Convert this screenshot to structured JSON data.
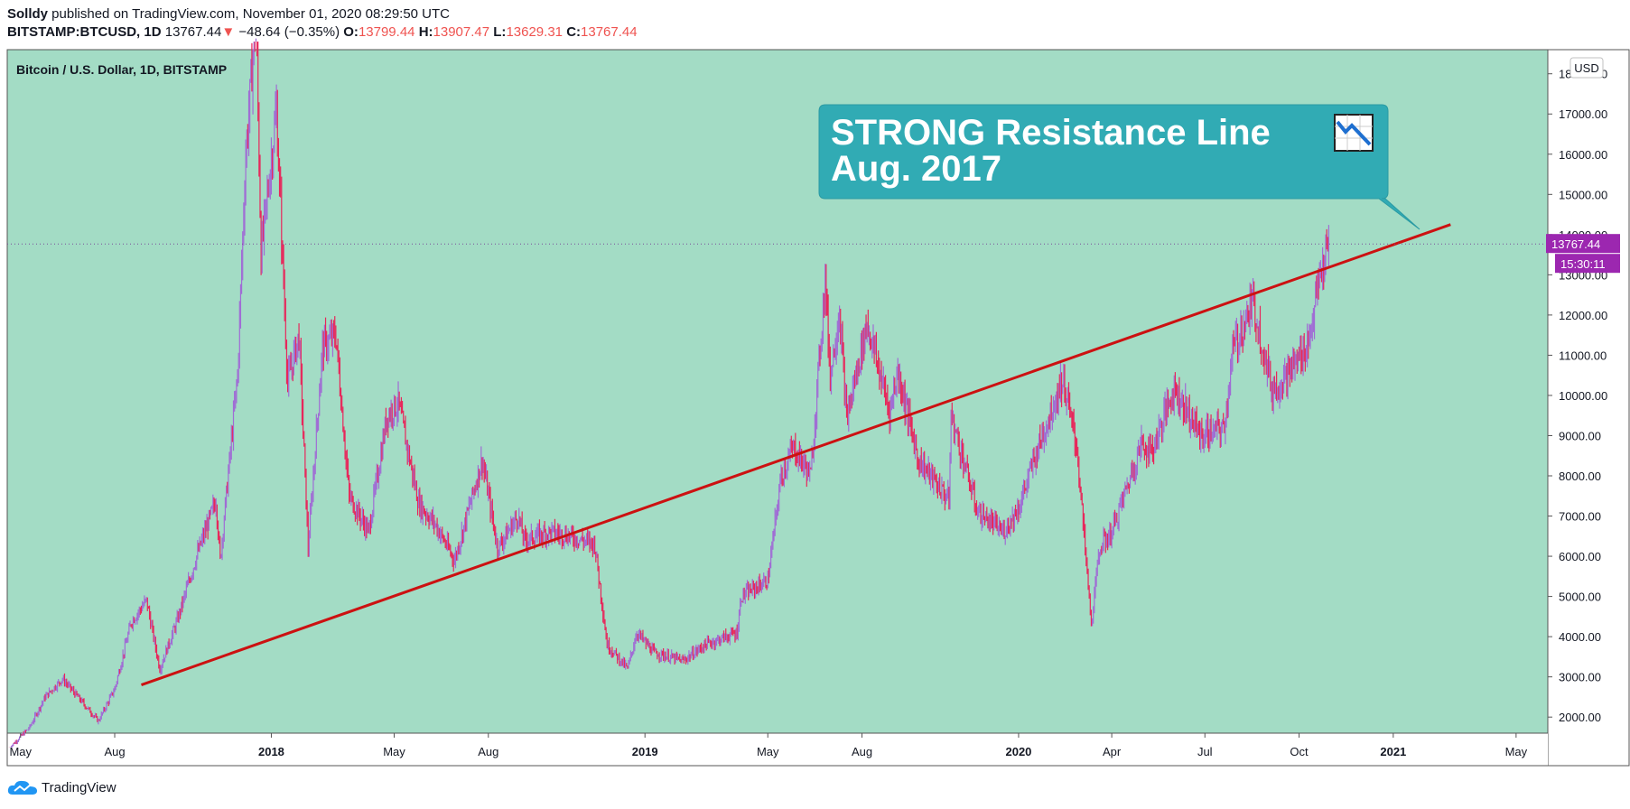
{
  "header": {
    "author": "Solldy",
    "published_text": " published on TradingView.com, November 01, 2020 08:29:50 UTC",
    "symbol": "BITSTAMP:BTCUSD, 1D",
    "last": "13767.44",
    "down_arrow": "▼",
    "change": "−48.64 (−0.35%)",
    "o_label": "O:",
    "o_value": "13799.44",
    "h_label": "H:",
    "h_value": "13907.47",
    "l_label": "L:",
    "l_value": "13629.31",
    "c_label": "C:",
    "c_value": "13767.44"
  },
  "chart_title": "Bitcoin / U.S. Dollar, 1D, BITSTAMP",
  "currency": "USD",
  "last_price_label": "13767.44",
  "countdown_label": "15:30:11",
  "annotation": {
    "line1": "STRONG Resistance Line",
    "line2": "Aug. 2017",
    "emoji_icon": "chart-decreasing-icon"
  },
  "footer": {
    "brand": "TradingView"
  },
  "colors": {
    "background": "#a3dcc5",
    "candle_down": "#e8265a",
    "candle_up": "#a06cd5",
    "trendline": "#cc1111",
    "callout": "#31abb4",
    "price_tag": "#9c27b0"
  },
  "chart_data": {
    "type": "candlestick",
    "title": "Bitcoin / U.S. Dollar, 1D, BITSTAMP",
    "ylabel": "USD",
    "ylim": [
      1600,
      18600
    ],
    "y_ticks": [
      2000,
      3000,
      4000,
      5000,
      6000,
      7000,
      8000,
      9000,
      10000,
      11000,
      12000,
      13000,
      14000,
      15000,
      16000,
      17000,
      18000
    ],
    "y_tick_labels": [
      "2000.00",
      "3000.00",
      "4000.00",
      "5000.00",
      "6000.00",
      "7000.00",
      "8000.00",
      "9000.00",
      "10000.00",
      "11000.00",
      "12000.00",
      "13000.00",
      "14000.00",
      "15000.00",
      "16000.00",
      "17000.00",
      "18000.00"
    ],
    "x_range": [
      "2017-04-18",
      "2021-06-01"
    ],
    "x_ticks": [
      {
        "date": "2017-05-01",
        "label": "May",
        "bold": false
      },
      {
        "date": "2017-08-01",
        "label": "Aug",
        "bold": false
      },
      {
        "date": "2018-01-01",
        "label": "2018",
        "bold": true
      },
      {
        "date": "2018-05-01",
        "label": "May",
        "bold": false
      },
      {
        "date": "2018-08-01",
        "label": "Aug",
        "bold": false
      },
      {
        "date": "2019-01-01",
        "label": "2019",
        "bold": true
      },
      {
        "date": "2019-05-01",
        "label": "May",
        "bold": false
      },
      {
        "date": "2019-08-01",
        "label": "Aug",
        "bold": false
      },
      {
        "date": "2020-01-01",
        "label": "2020",
        "bold": true
      },
      {
        "date": "2020-04-01",
        "label": "Apr",
        "bold": false
      },
      {
        "date": "2020-07-01",
        "label": "Jul",
        "bold": false
      },
      {
        "date": "2020-10-01",
        "label": "Oct",
        "bold": false
      },
      {
        "date": "2021-01-01",
        "label": "2021",
        "bold": true
      },
      {
        "date": "2021-05-01",
        "label": "May",
        "bold": false
      }
    ],
    "price_path": [
      [
        "2017-04-20",
        1230
      ],
      [
        "2017-05-10",
        1750
      ],
      [
        "2017-05-25",
        2500
      ],
      [
        "2017-06-11",
        2950
      ],
      [
        "2017-07-16",
        1900
      ],
      [
        "2017-08-01",
        2700
      ],
      [
        "2017-08-17",
        4350
      ],
      [
        "2017-09-01",
        4900
      ],
      [
        "2017-09-14",
        3200
      ],
      [
        "2017-10-01",
        4400
      ],
      [
        "2017-10-20",
        6000
      ],
      [
        "2017-11-08",
        7400
      ],
      [
        "2017-11-12",
        5900
      ],
      [
        "2017-11-29",
        10500
      ],
      [
        "2017-12-07",
        16000
      ],
      [
        "2017-12-17",
        19500
      ],
      [
        "2017-12-22",
        13500
      ],
      [
        "2018-01-06",
        17100
      ],
      [
        "2018-01-17",
        10300
      ],
      [
        "2018-01-28",
        11500
      ],
      [
        "2018-02-06",
        6200
      ],
      [
        "2018-02-20",
        11200
      ],
      [
        "2018-03-05",
        11500
      ],
      [
        "2018-03-18",
        7500
      ],
      [
        "2018-04-06",
        6600
      ],
      [
        "2018-04-24",
        9500
      ],
      [
        "2018-05-05",
        9800
      ],
      [
        "2018-05-25",
        7300
      ],
      [
        "2018-06-10",
        6800
      ],
      [
        "2018-06-29",
        5900
      ],
      [
        "2018-07-26",
        8400
      ],
      [
        "2018-08-10",
        6200
      ],
      [
        "2018-08-30",
        7000
      ],
      [
        "2018-09-05",
        6400
      ],
      [
        "2018-09-30",
        6600
      ],
      [
        "2018-10-20",
        6500
      ],
      [
        "2018-11-13",
        6300
      ],
      [
        "2018-11-25",
        3800
      ],
      [
        "2018-12-15",
        3200
      ],
      [
        "2018-12-24",
        4100
      ],
      [
        "2019-01-10",
        3600
      ],
      [
        "2019-02-07",
        3400
      ],
      [
        "2019-03-01",
        3800
      ],
      [
        "2019-04-01",
        4100
      ],
      [
        "2019-04-05",
        5000
      ],
      [
        "2019-05-01",
        5400
      ],
      [
        "2019-05-14",
        8000
      ],
      [
        "2019-05-26",
        8700
      ],
      [
        "2019-06-12",
        8000
      ],
      [
        "2019-06-26",
        12900
      ],
      [
        "2019-07-01",
        10500
      ],
      [
        "2019-07-10",
        12100
      ],
      [
        "2019-07-17",
        9400
      ],
      [
        "2019-08-06",
        11800
      ],
      [
        "2019-08-28",
        9600
      ],
      [
        "2019-09-05",
        10600
      ],
      [
        "2019-09-25",
        8400
      ],
      [
        "2019-10-25",
        7400
      ],
      [
        "2019-10-27",
        9500
      ],
      [
        "2019-11-22",
        7100
      ],
      [
        "2019-12-17",
        6600
      ],
      [
        "2020-01-01",
        7200
      ],
      [
        "2020-01-20",
        8700
      ],
      [
        "2020-02-13",
        10400
      ],
      [
        "2020-02-27",
        8700
      ],
      [
        "2020-03-12",
        4300
      ],
      [
        "2020-03-20",
        6200
      ],
      [
        "2020-04-01",
        6600
      ],
      [
        "2020-04-30",
        8800
      ],
      [
        "2020-05-10",
        8600
      ],
      [
        "2020-06-01",
        10200
      ],
      [
        "2020-06-27",
        9000
      ],
      [
        "2020-07-20",
        9200
      ],
      [
        "2020-07-28",
        11100
      ],
      [
        "2020-08-17",
        12300
      ],
      [
        "2020-09-05",
        10100
      ],
      [
        "2020-09-25",
        10700
      ],
      [
        "2020-10-10",
        11300
      ],
      [
        "2020-10-21",
        12900
      ],
      [
        "2020-10-31",
        13767
      ]
    ],
    "trendline": {
      "start": [
        "2017-08-27",
        2800
      ],
      "end": [
        "2021-02-26",
        14250
      ]
    },
    "last_price": 13767.44
  }
}
